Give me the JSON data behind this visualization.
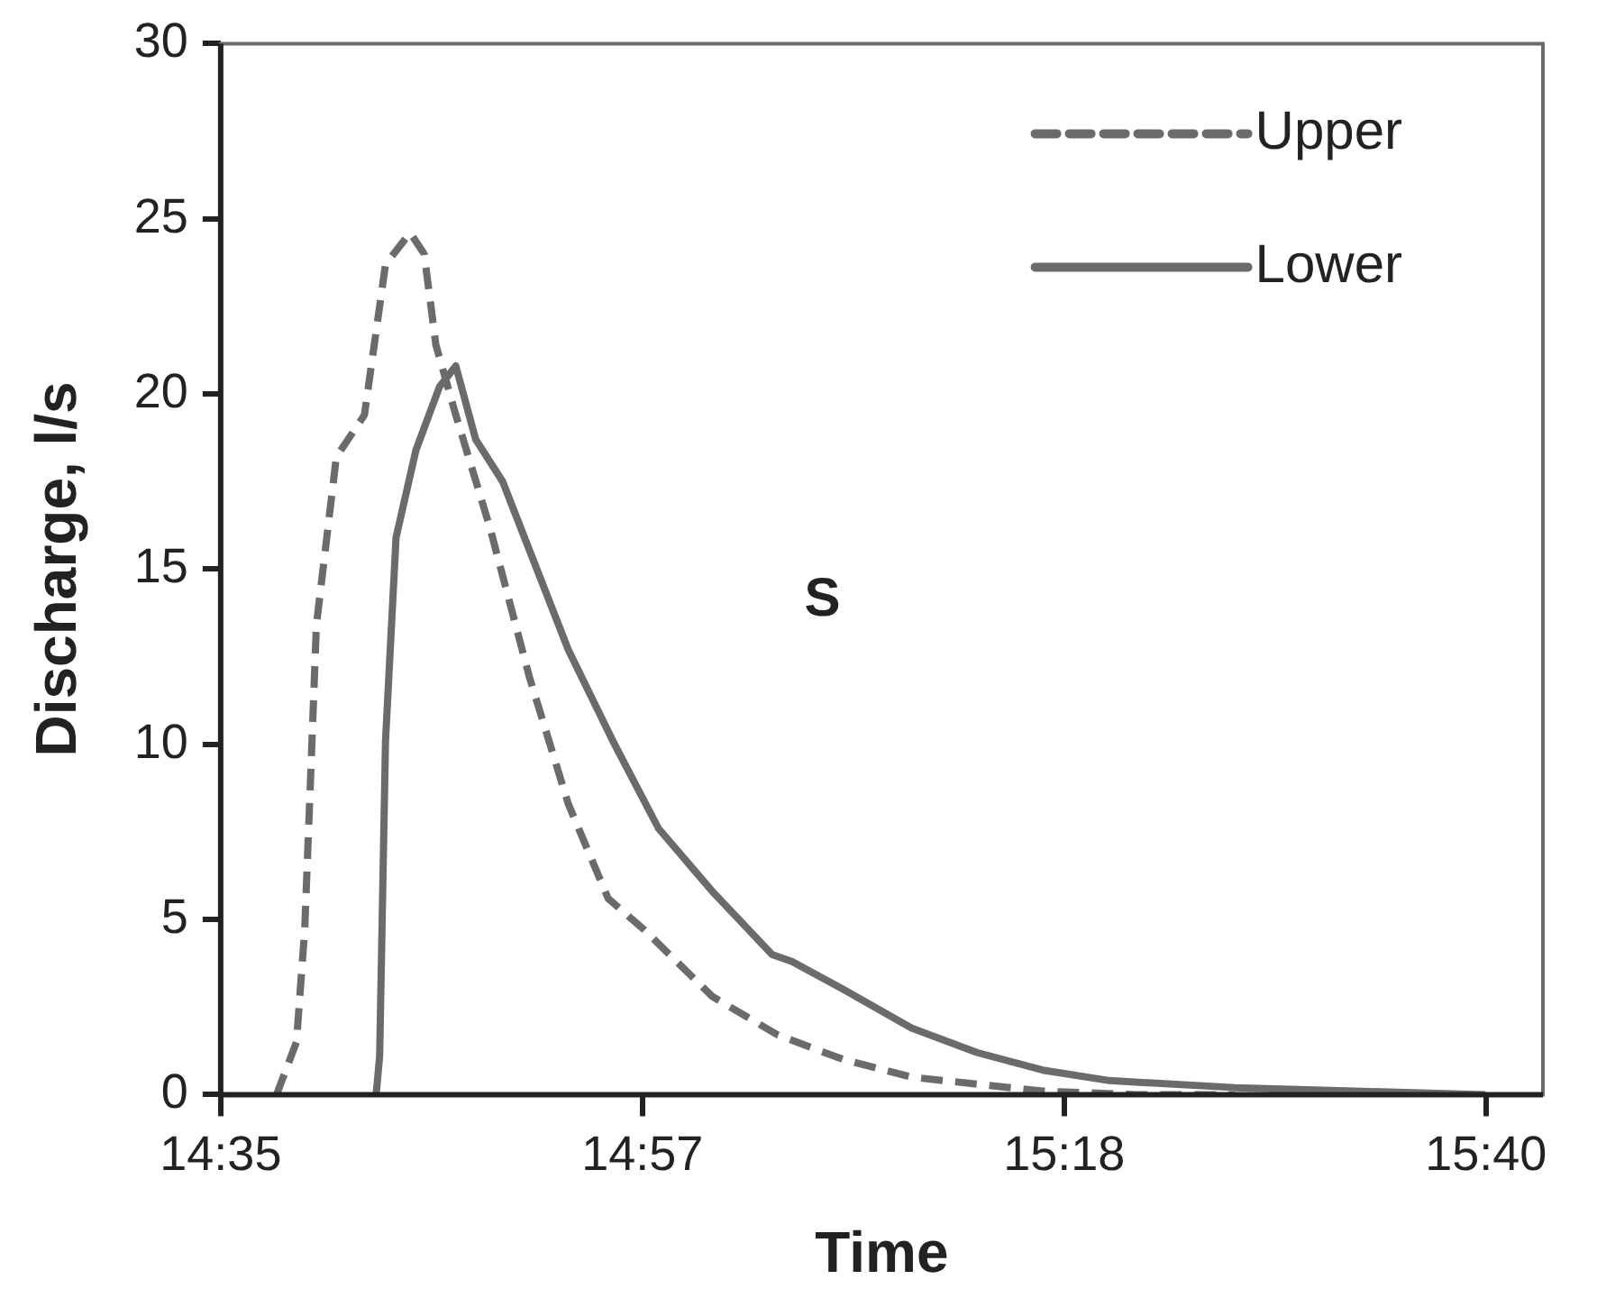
{
  "chart_data": {
    "type": "line",
    "xlabel": "Time",
    "ylabel": "Discharge, l/s",
    "annotations": [
      "S"
    ],
    "xlim": [
      14.5833,
      15.712
    ],
    "xticks": [
      {
        "value": 14.5833,
        "label": "14:35"
      },
      {
        "value": 14.9433,
        "label": "14:57"
      },
      {
        "value": 15.3033,
        "label": "15:18"
      },
      {
        "value": 15.6633,
        "label": "15:40"
      }
    ],
    "ylim": [
      0,
      30
    ],
    "yticks": [
      0,
      5,
      10,
      15,
      20,
      25,
      30
    ],
    "grid": false,
    "legend": "top right",
    "marker": "none",
    "series": [
      {
        "name": "Upper",
        "color": "#6b6b6b",
        "line_style": "dashed",
        "x": [
          14.631,
          14.648,
          14.655,
          14.66,
          14.665,
          14.682,
          14.706,
          14.724,
          14.745,
          14.757,
          14.767,
          14.784,
          14.813,
          14.847,
          14.88,
          14.914,
          14.945,
          15.003,
          15.059,
          15.115,
          15.173,
          15.229,
          15.285,
          15.364,
          15.449
        ],
        "values": [
          0,
          1.5,
          4.7,
          9,
          13.4,
          18.2,
          19.4,
          23.7,
          24.6,
          24,
          21.4,
          19.4,
          16.2,
          11.9,
          8.3,
          5.6,
          4.7,
          2.8,
          1.7,
          1,
          0.5,
          0.3,
          0.1,
          0,
          0
        ]
      },
      {
        "name": "Lower",
        "color": "#6b6b6b",
        "line_style": "solid",
        "x": [
          14.716,
          14.719,
          14.724,
          14.733,
          14.75,
          14.77,
          14.784,
          14.801,
          14.824,
          14.852,
          14.88,
          14.918,
          14.957,
          15.003,
          15.054,
          15.071,
          15.115,
          15.173,
          15.229,
          15.285,
          15.342,
          15.449,
          15.551,
          15.663
        ],
        "values": [
          0,
          1.1,
          10.1,
          15.9,
          18.4,
          20.2,
          20.8,
          18.7,
          17.5,
          15.1,
          12.7,
          10.1,
          7.6,
          5.8,
          4,
          3.8,
          3,
          1.9,
          1.2,
          0.7,
          0.4,
          0.2,
          0.1,
          0
        ]
      }
    ]
  }
}
